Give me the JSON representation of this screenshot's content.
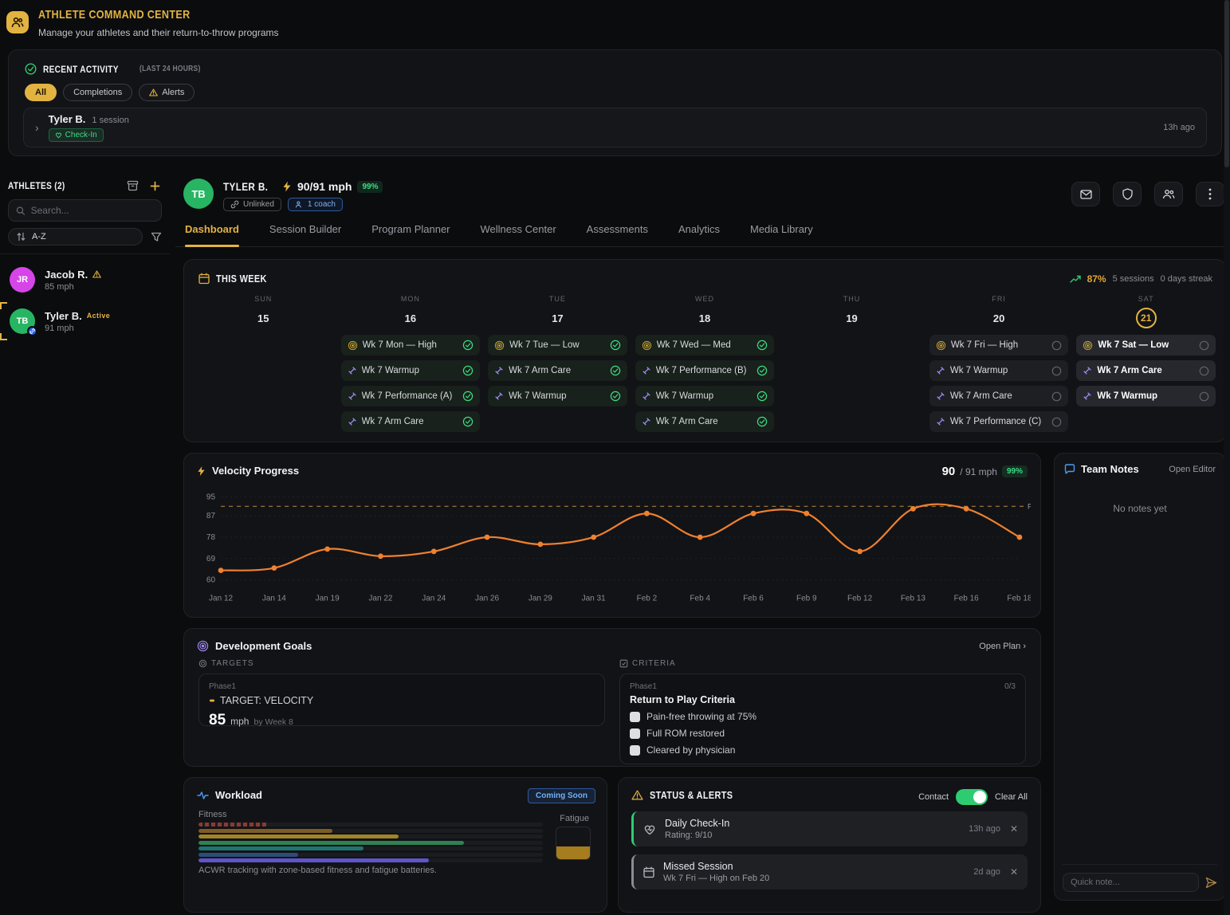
{
  "app": {
    "title": "ATHLETE COMMAND CENTER",
    "subtitle": "Manage your athletes and their return-to-throw programs"
  },
  "recent_activity": {
    "title": "RECENT ACTIVITY",
    "range_label": "(LAST 24 HOURS)",
    "filters": [
      {
        "label": "All",
        "active": true,
        "icon": ""
      },
      {
        "label": "Completions",
        "active": false,
        "icon": ""
      },
      {
        "label": "Alerts",
        "active": false,
        "icon": "alert-triangle"
      }
    ],
    "item": {
      "name": "Tyler B.",
      "meta": "1 session",
      "badge": "Check-In",
      "time": "13h ago"
    }
  },
  "sidebar": {
    "title": "ATHLETES (2)",
    "search_placeholder": "Search...",
    "sort_label": "A-Z",
    "athletes": [
      {
        "initials": "JR",
        "name": "Jacob R.",
        "warning": true,
        "status": "",
        "velocity": "85 mph",
        "avatar_color": "#d645e8",
        "active": false,
        "linked_badge": false
      },
      {
        "initials": "TB",
        "name": "Tyler B.",
        "warning": false,
        "status": "Active",
        "velocity": "91 mph",
        "avatar_color": "#27b563",
        "active": true,
        "linked_badge": true
      }
    ]
  },
  "athlete_header": {
    "initials": "TB",
    "name": "TYLER B.",
    "velocity": "90/91 mph",
    "percent_badge": "99%",
    "unlinked_label": "Unlinked",
    "coach_label": "1 coach"
  },
  "tabs": {
    "active": "Dashboard",
    "items": [
      "Dashboard",
      "Session Builder",
      "Program Planner",
      "Wellness Center",
      "Assessments",
      "Analytics",
      "Media Library"
    ]
  },
  "this_week": {
    "title": "THIS WEEK",
    "percent": "87%",
    "sessions_label": "5 sessions",
    "streak_label": "0 days streak",
    "days": [
      {
        "label": "SUN",
        "date": "15",
        "today": false,
        "sessions": []
      },
      {
        "label": "MON",
        "date": "16",
        "today": false,
        "sessions": [
          {
            "title": "Wk 7 Mon — High",
            "icon": "target",
            "done": true
          },
          {
            "title": "Wk 7 Warmup",
            "icon": "dumbbell",
            "done": true
          },
          {
            "title": "Wk 7 Performance (A)",
            "icon": "dumbbell",
            "done": true
          },
          {
            "title": "Wk 7 Arm Care",
            "icon": "dumbbell",
            "done": true
          }
        ]
      },
      {
        "label": "TUE",
        "date": "17",
        "today": false,
        "sessions": [
          {
            "title": "Wk 7 Tue — Low",
            "icon": "target",
            "done": true
          },
          {
            "title": "Wk 7 Arm Care",
            "icon": "dumbbell",
            "done": true
          },
          {
            "title": "Wk 7 Warmup",
            "icon": "dumbbell",
            "done": true
          }
        ]
      },
      {
        "label": "WED",
        "date": "18",
        "today": false,
        "sessions": [
          {
            "title": "Wk 7 Wed — Med",
            "icon": "target",
            "done": true
          },
          {
            "title": "Wk 7 Performance (B)",
            "icon": "dumbbell",
            "done": true
          },
          {
            "title": "Wk 7 Warmup",
            "icon": "dumbbell",
            "done": true
          },
          {
            "title": "Wk 7 Arm Care",
            "icon": "dumbbell",
            "done": true
          }
        ]
      },
      {
        "label": "THU",
        "date": "19",
        "today": false,
        "sessions": []
      },
      {
        "label": "FRI",
        "date": "20",
        "today": false,
        "sessions": [
          {
            "title": "Wk 7 Fri — High",
            "icon": "target",
            "done": false
          },
          {
            "title": "Wk 7 Warmup",
            "icon": "dumbbell",
            "done": false
          },
          {
            "title": "Wk 7 Arm Care",
            "icon": "dumbbell",
            "done": false
          },
          {
            "title": "Wk 7 Performance (C)",
            "icon": "dumbbell",
            "done": false
          }
        ]
      },
      {
        "label": "SAT",
        "date": "21",
        "today": true,
        "sessions": [
          {
            "title": "Wk 7 Sat — Low",
            "icon": "target",
            "done": false
          },
          {
            "title": "Wk 7 Arm Care",
            "icon": "dumbbell",
            "done": false
          },
          {
            "title": "Wk 7 Warmup",
            "icon": "dumbbell",
            "done": false
          }
        ]
      }
    ]
  },
  "velocity": {
    "title": "Velocity Progress",
    "current": "90",
    "target_suffix": "/ 91 mph",
    "percent_badge": "99%",
    "goal_label": "P"
  },
  "chart_data": {
    "type": "line",
    "title": "Velocity Progress",
    "x": [
      "Jan 12",
      "Jan 14",
      "Jan 19",
      "Jan 22",
      "Jan 24",
      "Jan 26",
      "Jan 29",
      "Jan 31",
      "Feb 2",
      "Feb 4",
      "Feb 6",
      "Feb 9",
      "Feb 12",
      "Feb 13",
      "Feb 16",
      "Feb 18"
    ],
    "values": [
      64,
      65,
      73,
      70,
      72,
      78,
      75,
      78,
      88,
      78,
      88,
      88,
      72,
      90,
      90,
      78
    ],
    "goal": 91,
    "ylabel": "mph",
    "ylim": [
      60,
      95
    ],
    "yticks": [
      60,
      69,
      78,
      87,
      95
    ],
    "grid": true,
    "line_color": "#f0812f",
    "goal_color": "#c08a3e"
  },
  "team_notes": {
    "title": "Team Notes",
    "action": "Open Editor",
    "empty": "No notes yet",
    "input_placeholder": "Quick note..."
  },
  "goals": {
    "title": "Development Goals",
    "action": "Open Plan ›",
    "targets_label": "TARGETS",
    "criteria_label": "CRITERIA",
    "target": {
      "phase": "Phase1",
      "name": "TARGET: VELOCITY",
      "value": "85",
      "unit": "mph",
      "deadline": "by Week 8"
    },
    "criteria": {
      "phase": "Phase1",
      "progress": "0/3",
      "name": "Return to Play Criteria",
      "items": [
        "Pain-free throwing at 75%",
        "Full ROM restored",
        "Cleared by physician"
      ]
    }
  },
  "workload": {
    "title": "Workload",
    "badge": "Coming Soon",
    "fitness_label": "Fitness",
    "fatigue_label": "Fatigue",
    "description": "ACWR tracking with zone-based fitness and fatigue batteries.",
    "bars": [
      {
        "color": "#8a3a34",
        "pct": 20,
        "dashed": true
      },
      {
        "color": "#7d5c26",
        "pct": 39,
        "dashed": false
      },
      {
        "color": "#a08428",
        "pct": 58,
        "dashed": false
      },
      {
        "color": "#2f8153",
        "pct": 77,
        "dashed": false
      },
      {
        "color": "#1f7472",
        "pct": 48,
        "dashed": false
      },
      {
        "color": "#2c4d75",
        "pct": 29,
        "dashed": false
      },
      {
        "color": "#5e55c8",
        "pct": 67,
        "dashed": false
      }
    ],
    "fatigue_fill_pct": 40
  },
  "alerts": {
    "title": "STATUS & ALERTS",
    "contact_label": "Contact",
    "toggle_on": true,
    "clear_label": "Clear All",
    "items": [
      {
        "icon": "heart",
        "accent": "#2ecc71",
        "title": "Daily Check-In",
        "detail": "Rating: 9/10",
        "time": "13h ago"
      },
      {
        "icon": "calendar",
        "accent": "#8a8d93",
        "title": "Missed Session",
        "detail": "Wk 7 Fri — High on Feb 20",
        "time": "2d ago"
      }
    ]
  },
  "colors": {
    "accent": "#e3b341",
    "green": "#2ecc71",
    "orange": "#f0812f",
    "blue": "#4b9bf5",
    "purple": "#a78bfa"
  }
}
